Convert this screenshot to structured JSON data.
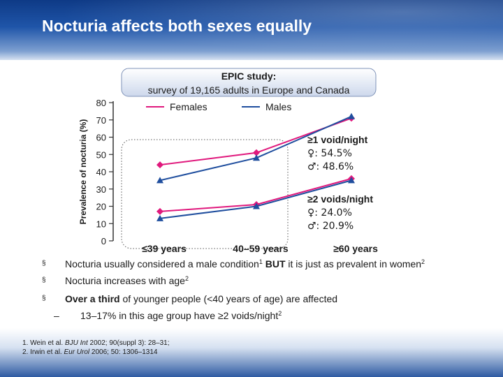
{
  "slide": {
    "title": "Nocturia affects both sexes equally"
  },
  "bullets": [
    {
      "marker": "§",
      "pre": "Nocturia usually considered a male condition",
      "sup": "1",
      "bold": " BUT",
      "post": " it is just as prevalent in women",
      "sup2": "2"
    },
    {
      "marker": "§",
      "pre": "Nocturia increases with age",
      "sup": "2"
    },
    {
      "marker": "§",
      "bold_first": "Over a third",
      "post": " of younger people (<40 years of age) are affected"
    }
  ],
  "sub_bullet": {
    "marker": "–",
    "text": "13–17% in this age group have ≥2 voids/night",
    "sup": "2"
  },
  "references": [
    {
      "pre": "1. Wein et al. ",
      "journal": "BJU Int",
      "post": " 2002; 90(suppl 3): 28–31;"
    },
    {
      "pre": "2. Irwin et al. ",
      "journal": "Eur Urol",
      "post": " 2006; 50: 1306–1314"
    }
  ],
  "colors": {
    "females": "#e0197d",
    "males": "#1f4e9e",
    "header": "#1f55a9",
    "axis": "#333333"
  },
  "chart_data": {
    "type": "line",
    "title": "EPIC study:",
    "subtitle": "survey of 19,165 adults in Europe and Canada",
    "ylabel": "Prevalence of nocturia (%)",
    "xlabel": "",
    "ylim": [
      0,
      80
    ],
    "yticks": [
      0,
      10,
      20,
      30,
      40,
      50,
      60,
      70,
      80
    ],
    "categories": [
      "≤39 years",
      "40–59 years",
      "≥60 years"
    ],
    "legend": [
      {
        "name": "Females",
        "color": "#e0197d"
      },
      {
        "name": "Males",
        "color": "#1f4e9e"
      }
    ],
    "groups": [
      {
        "label": "≥1 void/night",
        "female_line": "♀: 54.5%",
        "male_line": "♂: 48.6%",
        "series": [
          {
            "name": "Females",
            "values": [
              44,
              51,
              71
            ]
          },
          {
            "name": "Males",
            "values": [
              35,
              48,
              72
            ]
          }
        ]
      },
      {
        "label": "≥2 voids/night",
        "female_line": "♀: 24.0%",
        "male_line": "♂: 20.9%",
        "series": [
          {
            "name": "Females",
            "values": [
              17,
              21,
              36
            ]
          },
          {
            "name": "Males",
            "values": [
              13,
              20,
              35
            ]
          }
        ]
      }
    ],
    "grid": false,
    "highlight_box_around": "≤39 years"
  }
}
